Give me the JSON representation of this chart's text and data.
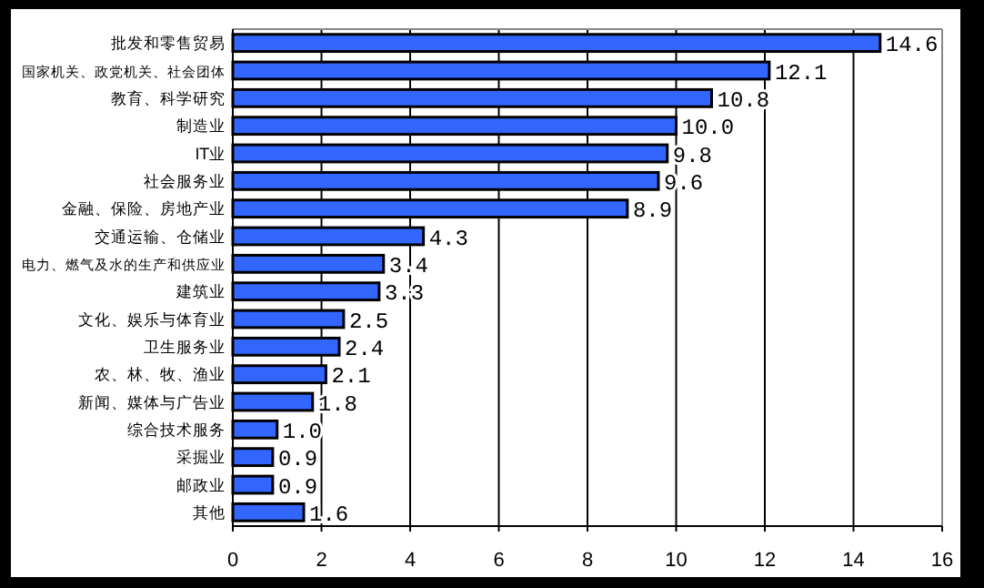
{
  "chart_data": {
    "type": "bar",
    "orientation": "horizontal",
    "categories": [
      "批发和零售贸易",
      "国家机关、政党机关、社会团体",
      "教育、科学研究",
      "制造业",
      "IT业",
      "社会服务业",
      "金融、保险、房地产业",
      "交通运输、仓储业",
      "电力、燃气及水的生产和供应业",
      "建筑业",
      "文化、娱乐与体育业",
      "卫生服务业",
      "农、林、牧、渔业",
      "新闻、媒体与广告业",
      "综合技术服务",
      "采掘业",
      "邮政业",
      "其他"
    ],
    "values": [
      14.6,
      12.1,
      10.8,
      10.0,
      9.8,
      9.6,
      8.9,
      4.3,
      3.4,
      3.3,
      2.5,
      2.4,
      2.1,
      1.8,
      1.0,
      0.9,
      0.9,
      1.6
    ],
    "value_labels": [
      "14.6",
      "12.1",
      "10.8",
      "10.0",
      "9.8",
      "9.6",
      "8.9",
      "4.3",
      "3.4",
      "3.3",
      "2.5",
      "2.4",
      "2.1",
      "1.8",
      "1.0",
      "0.9",
      "0.9",
      "1.6"
    ],
    "color": "#3366ff",
    "xlim": [
      0,
      16
    ],
    "xticks": [
      0,
      2,
      4,
      6,
      8,
      10,
      12,
      14,
      16
    ],
    "grid": "x"
  }
}
